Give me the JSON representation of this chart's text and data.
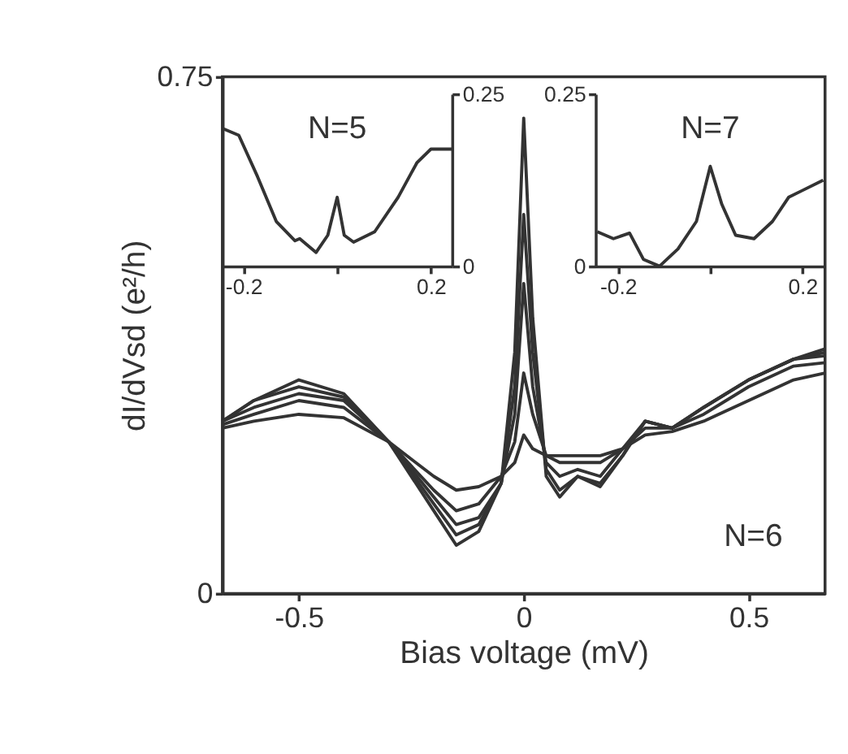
{
  "chart_data": [
    {
      "type": "line",
      "title": "N=6",
      "xlabel": "Bias voltage (mV)",
      "ylabel": "dI/dVsd (e²/h)",
      "xlim": [
        -0.67,
        0.67
      ],
      "ylim": [
        0,
        0.75
      ],
      "xticks": [
        -0.5,
        0,
        0.5
      ],
      "yticks": [
        0,
        0.75
      ],
      "grid": false,
      "legend": false,
      "marker": "none",
      "line_style": "solid",
      "x": [
        -0.67,
        -0.6,
        -0.5,
        -0.4,
        -0.3,
        -0.2,
        -0.15,
        -0.1,
        -0.05,
        -0.02,
        0,
        0.02,
        0.05,
        0.08,
        0.12,
        0.17,
        0.22,
        0.27,
        0.33,
        0.4,
        0.5,
        0.6,
        0.67
      ],
      "series": [
        {
          "color": "#333333",
          "values": [
            0.25,
            0.28,
            0.31,
            0.29,
            0.22,
            0.12,
            0.07,
            0.09,
            0.16,
            0.35,
            0.69,
            0.4,
            0.17,
            0.14,
            0.17,
            0.155,
            0.2,
            0.25,
            0.24,
            0.27,
            0.31,
            0.34,
            0.355
          ]
        },
        {
          "color": "#333333",
          "values": [
            0.25,
            0.28,
            0.3,
            0.285,
            0.22,
            0.13,
            0.085,
            0.1,
            0.16,
            0.3,
            0.55,
            0.35,
            0.18,
            0.15,
            0.17,
            0.16,
            0.2,
            0.25,
            0.24,
            0.27,
            0.31,
            0.34,
            0.35
          ]
        },
        {
          "color": "#333333",
          "values": [
            0.25,
            0.27,
            0.29,
            0.28,
            0.22,
            0.14,
            0.1,
            0.11,
            0.16,
            0.26,
            0.45,
            0.3,
            0.19,
            0.17,
            0.18,
            0.17,
            0.21,
            0.25,
            0.24,
            0.27,
            0.31,
            0.34,
            0.345
          ]
        },
        {
          "color": "#333333",
          "values": [
            0.245,
            0.26,
            0.28,
            0.27,
            0.22,
            0.15,
            0.12,
            0.13,
            0.17,
            0.22,
            0.32,
            0.26,
            0.2,
            0.19,
            0.19,
            0.19,
            0.21,
            0.24,
            0.24,
            0.26,
            0.3,
            0.33,
            0.335
          ]
        },
        {
          "color": "#333333",
          "values": [
            0.24,
            0.25,
            0.26,
            0.255,
            0.22,
            0.17,
            0.15,
            0.155,
            0.17,
            0.19,
            0.23,
            0.21,
            0.2,
            0.2,
            0.2,
            0.2,
            0.21,
            0.23,
            0.235,
            0.25,
            0.28,
            0.31,
            0.32
          ]
        }
      ]
    },
    {
      "type": "line",
      "title": "N=5",
      "xlim": [
        -0.245,
        0.245
      ],
      "ylim": [
        0,
        0.25
      ],
      "xticks": [
        -0.2,
        {
          "value": 0,
          "label": null
        },
        0.2
      ],
      "yticks": [
        0,
        0.25
      ],
      "grid": false,
      "legend": false,
      "marker": "none",
      "line_style": "solid",
      "x": [
        -0.245,
        -0.21,
        -0.17,
        -0.13,
        -0.09,
        -0.08,
        -0.045,
        -0.02,
        0,
        0.015,
        0.035,
        0.08,
        0.13,
        0.17,
        0.2,
        0.245
      ],
      "series": [
        {
          "color": "#333333",
          "values": [
            0.2,
            0.19,
            0.13,
            0.065,
            0.037,
            0.04,
            0.02,
            0.045,
            0.1,
            0.045,
            0.035,
            0.05,
            0.1,
            0.15,
            0.17,
            0.17
          ]
        }
      ]
    },
    {
      "type": "line",
      "title": "N=7",
      "xlim": [
        -0.249,
        0.249
      ],
      "ylim": [
        0,
        0.25
      ],
      "xticks": [
        -0.2,
        {
          "value": 0,
          "label": null
        },
        0.2
      ],
      "yticks": [
        0,
        0.25
      ],
      "grid": false,
      "legend": false,
      "marker": "none",
      "line_style": "solid",
      "x": [
        -0.245,
        -0.21,
        -0.175,
        -0.145,
        -0.11,
        -0.07,
        -0.03,
        0,
        0.025,
        0.055,
        0.095,
        0.135,
        0.17,
        0.2,
        0.245
      ],
      "series": [
        {
          "color": "#333333",
          "values": [
            0.05,
            0.04,
            0.048,
            0.01,
            0.0,
            0.025,
            0.065,
            0.145,
            0.09,
            0.045,
            0.04,
            0.065,
            0.1,
            0.11,
            0.125
          ]
        }
      ]
    }
  ]
}
